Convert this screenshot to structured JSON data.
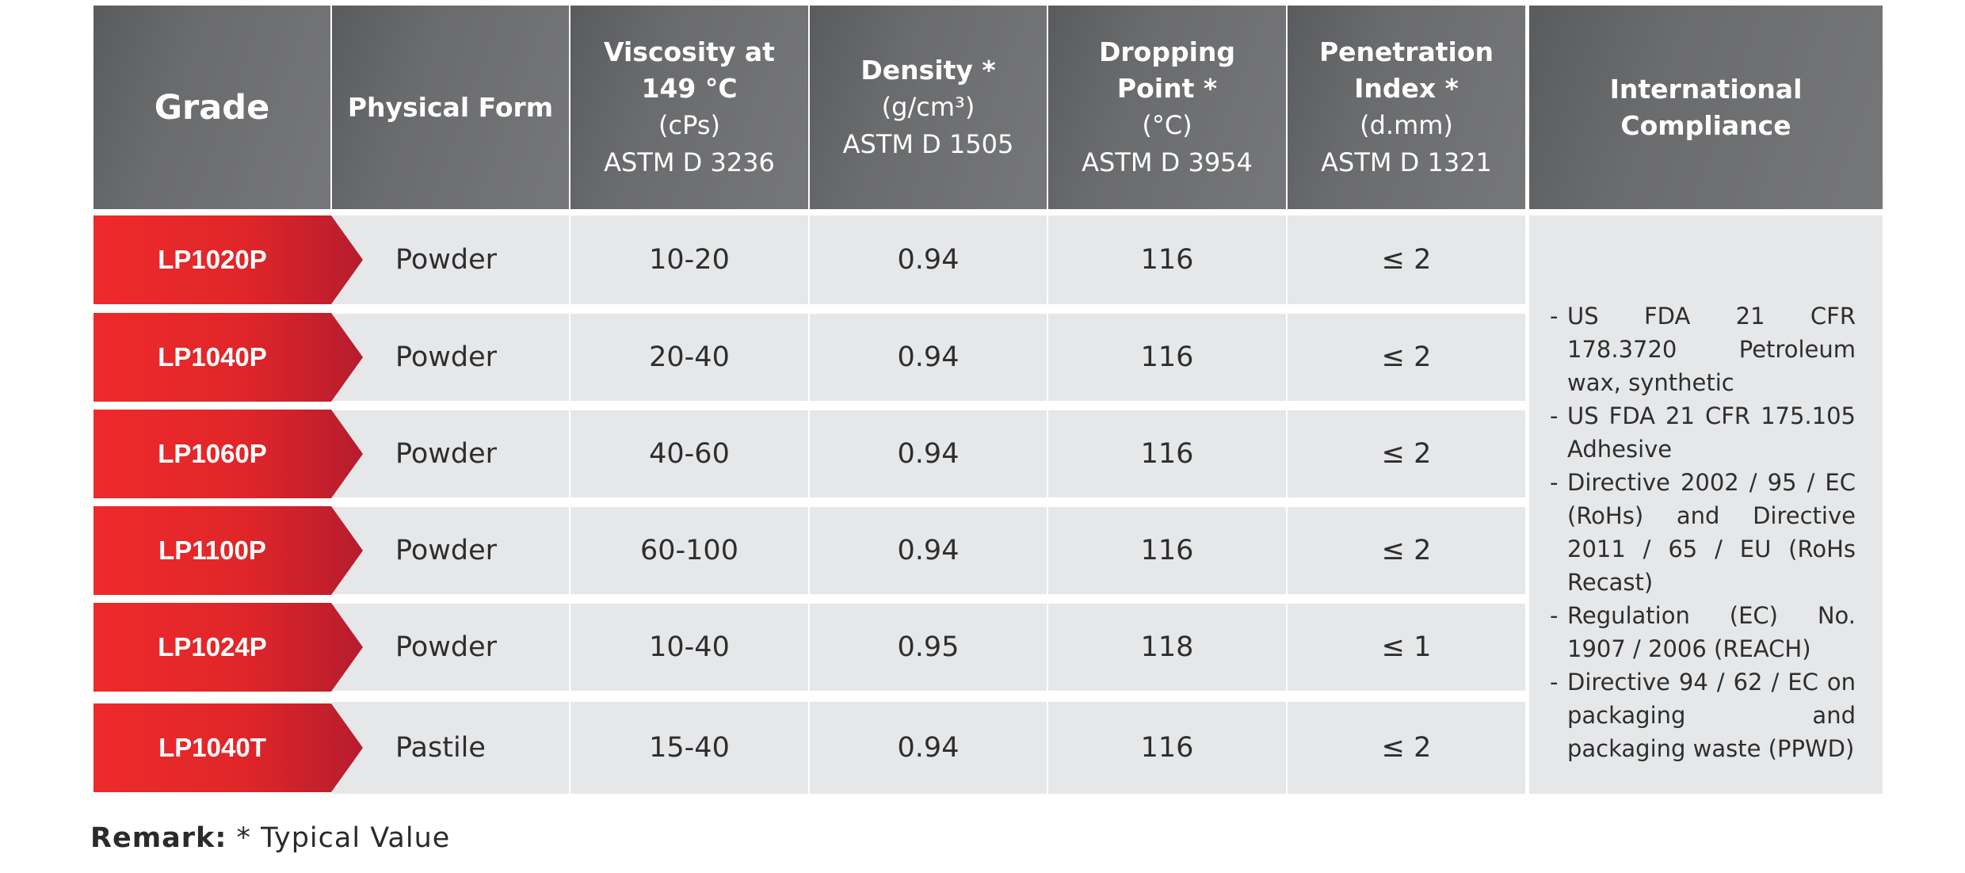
{
  "header": {
    "grade": "Grade",
    "physical_form": "Physical Form",
    "viscosity": {
      "title1": "Viscosity at",
      "title2": "149 °C",
      "unit": "(cPs)",
      "method": "ASTM D 3236"
    },
    "density": {
      "title1": "Density *",
      "unit": "(g/cm³)",
      "method": "ASTM D 1505"
    },
    "dropping": {
      "title1": "Dropping",
      "title2": "Point *",
      "unit": "(°C)",
      "method": "ASTM D 3954"
    },
    "penetration": {
      "title1": "Penetration",
      "title2": "Index *",
      "unit": "(d.mm)",
      "method": "ASTM D 1321"
    },
    "compliance": {
      "title1": "International",
      "title2": "Compliance"
    }
  },
  "rows": [
    {
      "grade": "LP1020P",
      "form": "Powder",
      "viscosity": "10-20",
      "density": "0.94",
      "dropping": "116",
      "penetration": "≤ 2"
    },
    {
      "grade": "LP1040P",
      "form": "Powder",
      "viscosity": "20-40",
      "density": "0.94",
      "dropping": "116",
      "penetration": "≤ 2"
    },
    {
      "grade": "LP1060P",
      "form": "Powder",
      "viscosity": "40-60",
      "density": "0.94",
      "dropping": "116",
      "penetration": "≤ 2"
    },
    {
      "grade": "LP1100P",
      "form": "Powder",
      "viscosity": "60-100",
      "density": "0.94",
      "dropping": "116",
      "penetration": "≤ 2"
    },
    {
      "grade": "LP1024P",
      "form": "Powder",
      "viscosity": "10-40",
      "density": "0.95",
      "dropping": "118",
      "penetration": "≤ 1"
    },
    {
      "grade": "LP1040T",
      "form": "Pastile",
      "viscosity": "15-40",
      "density": "0.94",
      "dropping": "116",
      "penetration": "≤ 2"
    }
  ],
  "compliance_items": [
    {
      "dash": "-",
      "text": "US FDA 21 CFR 178.3720 Petroleum wax, synthetic"
    },
    {
      "dash": "-",
      "text": "US FDA 21 CFR 175.105 Adhesive"
    },
    {
      "dash": "-",
      "text": "Directive 2002 / 95 / EC (RoHs) and Directive 2011 / 65 / EU (RoHs Recast)"
    },
    {
      "dash": "-",
      "text": "Regulation (EC) No. 1907 / 2006 (REACH)"
    },
    {
      "dash": "-",
      "text": "Directive 94 / 62 / EC on packaging and packaging waste (PPWD)"
    }
  ],
  "remark": {
    "label": "Remark:",
    "text": "* Typical Value"
  },
  "colors": {
    "header_bg": "#6a6b6d",
    "cell_bg": "#e6e7e9",
    "grade_red": "#e52a2b",
    "grade_dark": "#b81d2d"
  }
}
